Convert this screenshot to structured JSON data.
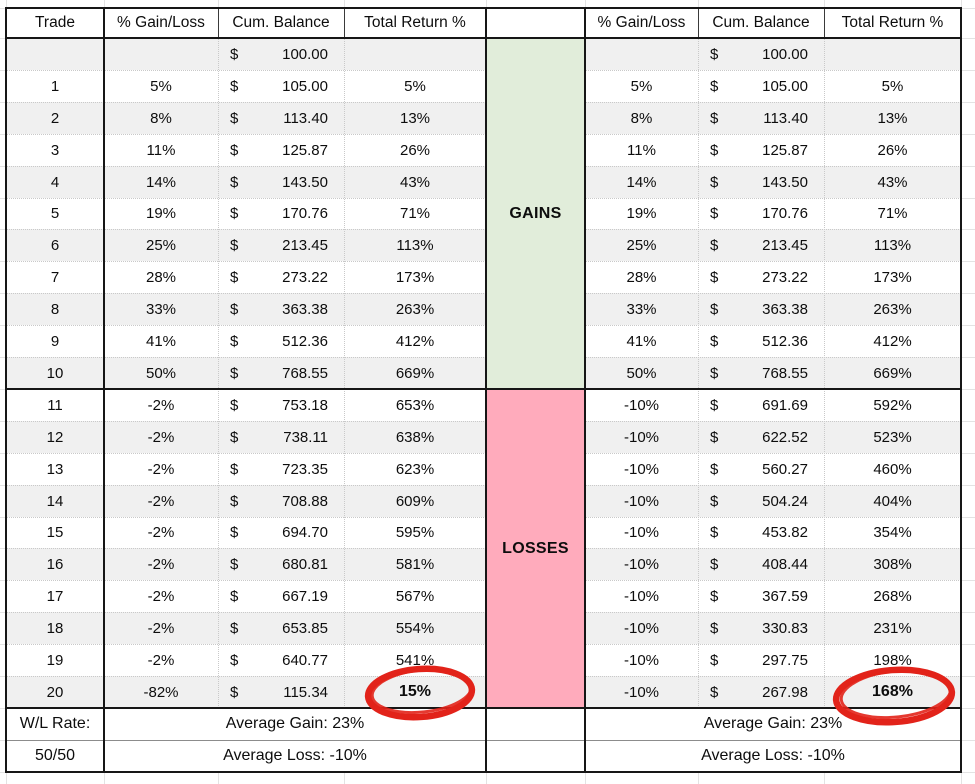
{
  "headers": {
    "trade": "Trade",
    "gain_loss": "% Gain/Loss",
    "cum_balance": "Cum. Balance",
    "total_return": "Total Return %"
  },
  "sections": {
    "gains": "GAINS",
    "losses": "LOSSES"
  },
  "currency_symbol": "$",
  "rows": [
    {
      "trade": "",
      "l_gain": "",
      "l_bal": "100.00",
      "l_ret": "",
      "r_gain": "",
      "r_bal": "100.00",
      "r_ret": ""
    },
    {
      "trade": "1",
      "l_gain": "5%",
      "l_bal": "105.00",
      "l_ret": "5%",
      "r_gain": "5%",
      "r_bal": "105.00",
      "r_ret": "5%"
    },
    {
      "trade": "2",
      "l_gain": "8%",
      "l_bal": "113.40",
      "l_ret": "13%",
      "r_gain": "8%",
      "r_bal": "113.40",
      "r_ret": "13%"
    },
    {
      "trade": "3",
      "l_gain": "11%",
      "l_bal": "125.87",
      "l_ret": "26%",
      "r_gain": "11%",
      "r_bal": "125.87",
      "r_ret": "26%"
    },
    {
      "trade": "4",
      "l_gain": "14%",
      "l_bal": "143.50",
      "l_ret": "43%",
      "r_gain": "14%",
      "r_bal": "143.50",
      "r_ret": "43%"
    },
    {
      "trade": "5",
      "l_gain": "19%",
      "l_bal": "170.76",
      "l_ret": "71%",
      "r_gain": "19%",
      "r_bal": "170.76",
      "r_ret": "71%"
    },
    {
      "trade": "6",
      "l_gain": "25%",
      "l_bal": "213.45",
      "l_ret": "113%",
      "r_gain": "25%",
      "r_bal": "213.45",
      "r_ret": "113%"
    },
    {
      "trade": "7",
      "l_gain": "28%",
      "l_bal": "273.22",
      "l_ret": "173%",
      "r_gain": "28%",
      "r_bal": "273.22",
      "r_ret": "173%"
    },
    {
      "trade": "8",
      "l_gain": "33%",
      "l_bal": "363.38",
      "l_ret": "263%",
      "r_gain": "33%",
      "r_bal": "363.38",
      "r_ret": "263%"
    },
    {
      "trade": "9",
      "l_gain": "41%",
      "l_bal": "512.36",
      "l_ret": "412%",
      "r_gain": "41%",
      "r_bal": "512.36",
      "r_ret": "412%"
    },
    {
      "trade": "10",
      "l_gain": "50%",
      "l_bal": "768.55",
      "l_ret": "669%",
      "r_gain": "50%",
      "r_bal": "768.55",
      "r_ret": "669%"
    },
    {
      "trade": "11",
      "l_gain": "-2%",
      "l_bal": "753.18",
      "l_ret": "653%",
      "r_gain": "-10%",
      "r_bal": "691.69",
      "r_ret": "592%"
    },
    {
      "trade": "12",
      "l_gain": "-2%",
      "l_bal": "738.11",
      "l_ret": "638%",
      "r_gain": "-10%",
      "r_bal": "622.52",
      "r_ret": "523%"
    },
    {
      "trade": "13",
      "l_gain": "-2%",
      "l_bal": "723.35",
      "l_ret": "623%",
      "r_gain": "-10%",
      "r_bal": "560.27",
      "r_ret": "460%"
    },
    {
      "trade": "14",
      "l_gain": "-2%",
      "l_bal": "708.88",
      "l_ret": "609%",
      "r_gain": "-10%",
      "r_bal": "504.24",
      "r_ret": "404%"
    },
    {
      "trade": "15",
      "l_gain": "-2%",
      "l_bal": "694.70",
      "l_ret": "595%",
      "r_gain": "-10%",
      "r_bal": "453.82",
      "r_ret": "354%"
    },
    {
      "trade": "16",
      "l_gain": "-2%",
      "l_bal": "680.81",
      "l_ret": "581%",
      "r_gain": "-10%",
      "r_bal": "408.44",
      "r_ret": "308%"
    },
    {
      "trade": "17",
      "l_gain": "-2%",
      "l_bal": "667.19",
      "l_ret": "567%",
      "r_gain": "-10%",
      "r_bal": "367.59",
      "r_ret": "268%"
    },
    {
      "trade": "18",
      "l_gain": "-2%",
      "l_bal": "653.85",
      "l_ret": "554%",
      "r_gain": "-10%",
      "r_bal": "330.83",
      "r_ret": "231%"
    },
    {
      "trade": "19",
      "l_gain": "-2%",
      "l_bal": "640.77",
      "l_ret": "541%",
      "r_gain": "-10%",
      "r_bal": "297.75",
      "r_ret": "198%"
    },
    {
      "trade": "20",
      "l_gain": "-82%",
      "l_bal": "115.34",
      "l_ret": "15%",
      "r_gain": "-10%",
      "r_bal": "267.98",
      "r_ret": "168%",
      "circled": true
    }
  ],
  "footer": {
    "wl_rate_label": "W/L Rate:",
    "wl_rate_value": "50/50",
    "avg_gain": "Average Gain: 23%",
    "avg_loss": "Average Loss: -10%"
  },
  "annotations": {
    "left_circle_value": "15%",
    "right_circle_value": "168%"
  },
  "colors": {
    "gains_bg": "#e1edda",
    "losses_bg": "#ffabbc",
    "stripe_bg": "#f0f0f0",
    "annotation_red": "#e2231a",
    "grid_dotted": "#c9c9c9",
    "border_black": "#161616",
    "margin_grid": "#e3e3e3"
  }
}
